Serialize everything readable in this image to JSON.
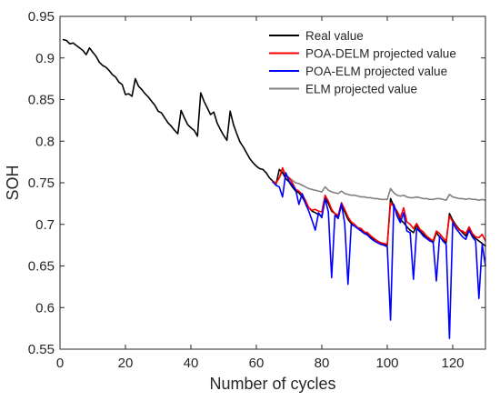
{
  "chart_data": {
    "type": "line",
    "title": "",
    "xlabel": "Number of cycles",
    "ylabel": "SOH",
    "xlim": [
      0,
      130
    ],
    "ylim": [
      0.55,
      0.95
    ],
    "xticks": [
      0,
      20,
      40,
      60,
      80,
      100,
      120
    ],
    "yticks": [
      0.55,
      0.6,
      0.65,
      0.7,
      0.75,
      0.8,
      0.85,
      0.9,
      0.95
    ],
    "grid": false,
    "legend_position": "top-right",
    "series": [
      {
        "name": "Real value",
        "color": "#000000",
        "x": [
          1,
          2,
          3,
          4,
          5,
          6,
          7,
          8,
          9,
          10,
          11,
          12,
          13,
          14,
          15,
          16,
          17,
          18,
          19,
          20,
          21,
          22,
          23,
          24,
          25,
          26,
          27,
          28,
          29,
          30,
          31,
          32,
          33,
          34,
          35,
          36,
          37,
          38,
          39,
          40,
          41,
          42,
          43,
          44,
          45,
          46,
          47,
          48,
          49,
          50,
          51,
          52,
          53,
          54,
          55,
          56,
          57,
          58,
          59,
          60,
          61,
          62,
          63,
          64,
          65,
          66,
          67,
          68,
          69,
          70,
          71,
          72,
          73,
          74,
          75,
          76,
          77,
          78,
          79,
          80,
          81,
          82,
          83,
          84,
          85,
          86,
          87,
          88,
          89,
          90,
          91,
          92,
          93,
          94,
          95,
          96,
          97,
          98,
          99,
          100,
          101,
          102,
          103,
          104,
          105,
          106,
          107,
          108,
          109,
          110,
          111,
          112,
          113,
          114,
          115,
          116,
          117,
          118,
          119,
          120,
          121,
          122,
          123,
          124,
          125,
          126,
          127,
          128,
          129,
          130
        ],
        "y": [
          0.922,
          0.921,
          0.917,
          0.918,
          0.915,
          0.912,
          0.909,
          0.904,
          0.912,
          0.907,
          0.902,
          0.895,
          0.891,
          0.889,
          0.885,
          0.88,
          0.877,
          0.871,
          0.868,
          0.856,
          0.857,
          0.854,
          0.875,
          0.866,
          0.862,
          0.857,
          0.853,
          0.848,
          0.843,
          0.836,
          0.834,
          0.828,
          0.822,
          0.818,
          0.813,
          0.809,
          0.837,
          0.828,
          0.82,
          0.816,
          0.813,
          0.806,
          0.858,
          0.848,
          0.84,
          0.832,
          0.835,
          0.822,
          0.814,
          0.807,
          0.801,
          0.836,
          0.82,
          0.809,
          0.799,
          0.793,
          0.786,
          0.779,
          0.774,
          0.77,
          0.767,
          0.766,
          0.762,
          0.756,
          0.752,
          0.748,
          0.766,
          0.762,
          0.755,
          0.751,
          0.745,
          0.74,
          0.738,
          0.733,
          0.726,
          0.72,
          0.716,
          0.714,
          0.712,
          0.71,
          0.732,
          0.725,
          0.716,
          0.713,
          0.708,
          0.723,
          0.715,
          0.706,
          0.701,
          0.698,
          0.695,
          0.693,
          0.69,
          0.688,
          0.685,
          0.682,
          0.68,
          0.677,
          0.676,
          0.675,
          0.731,
          0.722,
          0.715,
          0.706,
          0.702,
          0.697,
          0.693,
          0.69,
          0.699,
          0.692,
          0.688,
          0.684,
          0.681,
          0.678,
          0.69,
          0.685,
          0.681,
          0.678,
          0.713,
          0.705,
          0.699,
          0.694,
          0.69,
          0.686,
          0.694,
          0.687,
          0.683,
          0.68,
          0.677,
          0.674
        ]
      },
      {
        "name": "POA-DELM projected value",
        "color": "#ff0000",
        "x": [
          65,
          66,
          67,
          68,
          69,
          70,
          71,
          72,
          73,
          74,
          75,
          76,
          77,
          78,
          79,
          80,
          81,
          82,
          83,
          84,
          85,
          86,
          87,
          88,
          89,
          90,
          91,
          92,
          93,
          94,
          95,
          96,
          97,
          98,
          99,
          100,
          101,
          102,
          103,
          104,
          105,
          106,
          107,
          108,
          109,
          110,
          111,
          112,
          113,
          114,
          115,
          116,
          117,
          118,
          119,
          120,
          121,
          122,
          123,
          124,
          125,
          126,
          127,
          128,
          129,
          130
        ],
        "y": [
          0.752,
          0.749,
          0.756,
          0.768,
          0.758,
          0.756,
          0.75,
          0.742,
          0.74,
          0.736,
          0.729,
          0.72,
          0.717,
          0.718,
          0.716,
          0.715,
          0.735,
          0.728,
          0.718,
          0.713,
          0.711,
          0.726,
          0.718,
          0.709,
          0.703,
          0.7,
          0.696,
          0.695,
          0.691,
          0.69,
          0.686,
          0.683,
          0.68,
          0.678,
          0.677,
          0.676,
          0.726,
          0.721,
          0.716,
          0.708,
          0.72,
          0.703,
          0.7,
          0.695,
          0.701,
          0.694,
          0.691,
          0.686,
          0.683,
          0.68,
          0.692,
          0.689,
          0.684,
          0.68,
          0.71,
          0.703,
          0.698,
          0.693,
          0.692,
          0.689,
          0.697,
          0.689,
          0.685,
          0.684,
          0.688,
          0.68
        ]
      },
      {
        "name": "POA-ELM projected value",
        "color": "#0000ff",
        "x": [
          65,
          66,
          67,
          68,
          69,
          70,
          71,
          72,
          73,
          74,
          75,
          76,
          77,
          78,
          79,
          80,
          81,
          82,
          83,
          84,
          85,
          86,
          87,
          88,
          89,
          90,
          91,
          92,
          93,
          94,
          95,
          96,
          97,
          98,
          99,
          100,
          101,
          102,
          103,
          104,
          105,
          106,
          107,
          108,
          109,
          110,
          111,
          112,
          113,
          114,
          115,
          116,
          117,
          118,
          119,
          120,
          121,
          122,
          123,
          124,
          125,
          126,
          127,
          128,
          129,
          130
        ],
        "y": [
          0.751,
          0.747,
          0.745,
          0.733,
          0.762,
          0.752,
          0.747,
          0.742,
          0.724,
          0.737,
          0.725,
          0.716,
          0.705,
          0.693,
          0.714,
          0.708,
          0.731,
          0.715,
          0.636,
          0.711,
          0.707,
          0.725,
          0.701,
          0.628,
          0.7,
          0.698,
          0.695,
          0.692,
          0.689,
          0.687,
          0.683,
          0.68,
          0.678,
          0.676,
          0.675,
          0.673,
          0.585,
          0.724,
          0.71,
          0.702,
          0.714,
          0.692,
          0.69,
          0.634,
          0.695,
          0.691,
          0.686,
          0.683,
          0.68,
          0.679,
          0.632,
          0.686,
          0.68,
          0.676,
          0.563,
          0.702,
          0.695,
          0.69,
          0.685,
          0.682,
          0.693,
          0.685,
          0.68,
          0.611,
          0.676,
          0.65
        ]
      },
      {
        "name": "ELM projected value",
        "color": "#808080",
        "x": [
          65,
          66,
          67,
          68,
          69,
          70,
          71,
          72,
          73,
          74,
          75,
          76,
          77,
          78,
          79,
          80,
          81,
          82,
          83,
          84,
          85,
          86,
          87,
          88,
          89,
          90,
          91,
          92,
          93,
          94,
          95,
          96,
          97,
          98,
          99,
          100,
          101,
          102,
          103,
          104,
          105,
          106,
          107,
          108,
          109,
          110,
          111,
          112,
          113,
          114,
          115,
          116,
          117,
          118,
          119,
          120,
          121,
          122,
          123,
          124,
          125,
          126,
          127,
          128,
          129,
          130
        ],
        "y": [
          0.752,
          0.75,
          0.756,
          0.764,
          0.76,
          0.756,
          0.753,
          0.75,
          0.749,
          0.747,
          0.745,
          0.743,
          0.742,
          0.741,
          0.74,
          0.739,
          0.745,
          0.741,
          0.739,
          0.738,
          0.737,
          0.74,
          0.737,
          0.736,
          0.735,
          0.735,
          0.734,
          0.733,
          0.733,
          0.732,
          0.732,
          0.731,
          0.731,
          0.73,
          0.73,
          0.73,
          0.743,
          0.738,
          0.735,
          0.734,
          0.735,
          0.733,
          0.732,
          0.732,
          0.733,
          0.732,
          0.731,
          0.731,
          0.73,
          0.73,
          0.731,
          0.731,
          0.73,
          0.729,
          0.736,
          0.733,
          0.732,
          0.731,
          0.731,
          0.73,
          0.731,
          0.73,
          0.73,
          0.729,
          0.73,
          0.729
        ]
      }
    ]
  }
}
